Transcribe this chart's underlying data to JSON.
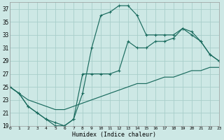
{
  "xlabel": "Humidex (Indice chaleur)",
  "xlim": [
    0,
    23
  ],
  "ylim": [
    19,
    38
  ],
  "yticks": [
    19,
    21,
    23,
    25,
    27,
    29,
    31,
    33,
    35,
    37
  ],
  "xticks": [
    0,
    1,
    2,
    3,
    4,
    5,
    6,
    7,
    8,
    9,
    10,
    11,
    12,
    13,
    14,
    15,
    16,
    17,
    18,
    19,
    20,
    21,
    22,
    23
  ],
  "bg_color": "#cde8e5",
  "grid_color": "#a8ceca",
  "line_color": "#1a6b5e",
  "line1_x": [
    0,
    1,
    2,
    3,
    4,
    5,
    6,
    7,
    8,
    9,
    10,
    11,
    12,
    13,
    14,
    15,
    16,
    17,
    18,
    19,
    20,
    21,
    22,
    23
  ],
  "line1_y": [
    25,
    24,
    22,
    21,
    20,
    19,
    19,
    20,
    24,
    31,
    36,
    36.5,
    37.5,
    37.5,
    36,
    33,
    33,
    33,
    33,
    34,
    33.5,
    32,
    30,
    29
  ],
  "line2_x": [
    0,
    1,
    2,
    3,
    4,
    5,
    6,
    7,
    8,
    9,
    10,
    11,
    12,
    13,
    14,
    15,
    16,
    17,
    18,
    19,
    20,
    21,
    22,
    23
  ],
  "line2_y": [
    25,
    24,
    22,
    21,
    20,
    19.5,
    19,
    20,
    27,
    27,
    27,
    27,
    27.5,
    32,
    31,
    31,
    32,
    32,
    32.5,
    34,
    33,
    32,
    30,
    29
  ],
  "line3_x": [
    0,
    1,
    2,
    3,
    4,
    5,
    6,
    7,
    8,
    9,
    10,
    11,
    12,
    13,
    14,
    15,
    16,
    17,
    18,
    19,
    20,
    21,
    22,
    23
  ],
  "line3_y": [
    25,
    24,
    23,
    22.5,
    22,
    21.5,
    21.5,
    22,
    22.5,
    23,
    23.5,
    24,
    24.5,
    25,
    25.5,
    25.5,
    26,
    26.5,
    26.5,
    27,
    27.5,
    27.5,
    28,
    28
  ]
}
